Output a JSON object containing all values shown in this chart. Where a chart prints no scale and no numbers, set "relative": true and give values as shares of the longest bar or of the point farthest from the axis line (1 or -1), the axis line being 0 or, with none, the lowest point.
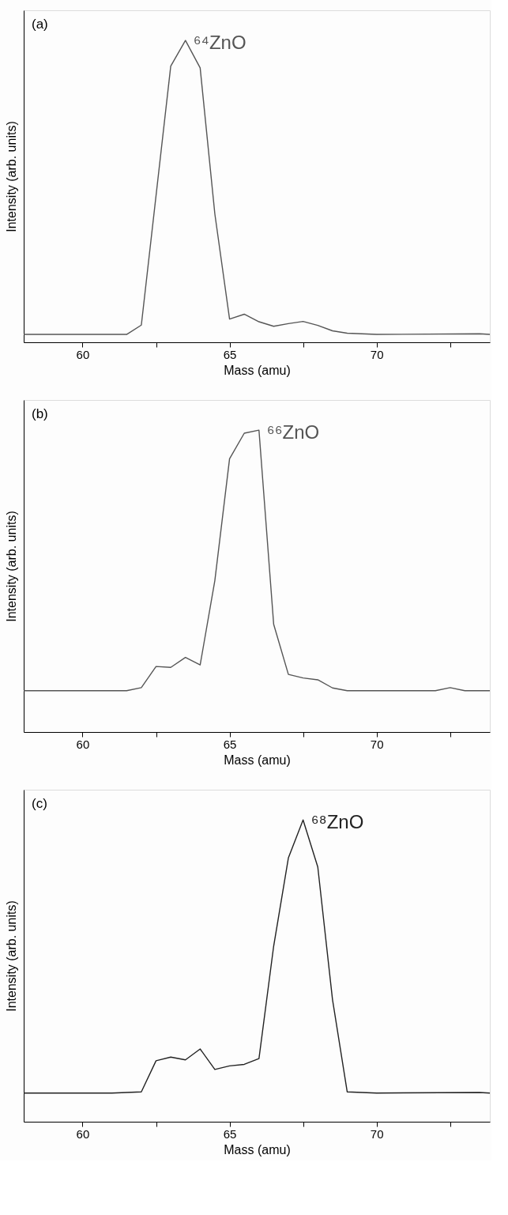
{
  "chart_data": [
    {
      "type": "line",
      "relative": true,
      "xlabel": "Mass (amu)",
      "ylabel": "Intensity (arb. units)",
      "xlim": [
        58,
        73.85
      ],
      "xticks": [
        60,
        {
          "value": 62.5,
          "label": null
        },
        65,
        {
          "value": 67.5,
          "label": null
        },
        70,
        {
          "value": 72.5,
          "label": null
        }
      ],
      "x": [
        58,
        61.5,
        62,
        63,
        63.5,
        64,
        64.5,
        65,
        65.5,
        66,
        66.5,
        67,
        67.5,
        68,
        68.5,
        69,
        70,
        73.5,
        73.85
      ],
      "series": [
        {
          "color": "#555555",
          "values": [
            0.026,
            0.026,
            0.057,
            0.915,
            1,
            0.909,
            0.425,
            0.077,
            0.093,
            0.068,
            0.053,
            0.062,
            0.069,
            0.056,
            0.038,
            0.03,
            0.026,
            0.028,
            0.026
          ]
        }
      ],
      "annotations": [
        "(a)",
        {
          "text": "⁶⁴ZnO",
          "x": 63.5,
          "y": 1
        }
      ]
    },
    {
      "type": "line",
      "relative": true,
      "xlabel": "Mass (amu)",
      "ylabel": "Intensity (arb. units)",
      "xlim": [
        58,
        73.85
      ],
      "xticks": [
        60,
        {
          "value": 62.5,
          "label": null
        },
        65,
        {
          "value": 67.5,
          "label": null
        },
        70,
        {
          "value": 72.5,
          "label": null
        }
      ],
      "x": [
        58,
        61.5,
        62,
        62.5,
        63,
        63.5,
        64,
        64.5,
        65,
        65.5,
        66,
        66.5,
        67,
        67.5,
        68,
        68.5,
        69,
        72,
        72.5,
        73,
        73.85
      ],
      "series": [
        {
          "color": "#555555",
          "values": [
            0.137,
            0.137,
            0.147,
            0.217,
            0.214,
            0.247,
            0.222,
            0.502,
            0.905,
            0.99,
            1,
            0.357,
            0.191,
            0.179,
            0.173,
            0.146,
            0.137,
            0.137,
            0.147,
            0.137,
            0.137
          ]
        }
      ],
      "annotations": [
        "(b)",
        {
          "text": "⁶⁶ZnO",
          "x": 66,
          "y": 1
        }
      ]
    },
    {
      "type": "line",
      "relative": true,
      "xlabel": "Mass (amu)",
      "ylabel": "Intensity (arb. units)",
      "xlim": [
        58,
        73.85
      ],
      "xticks": [
        60,
        {
          "value": 62.5,
          "label": null
        },
        65,
        {
          "value": 67.5,
          "label": null
        },
        70,
        {
          "value": 72.5,
          "label": null
        }
      ],
      "x": [
        58,
        61,
        62,
        62.5,
        63,
        63.5,
        64,
        64.5,
        65,
        65.5,
        66,
        66.5,
        67,
        67.5,
        68,
        68.5,
        69,
        70,
        73.5,
        73.85
      ],
      "series": [
        {
          "color": "#222222",
          "values": [
            0.095,
            0.095,
            0.099,
            0.202,
            0.214,
            0.205,
            0.241,
            0.173,
            0.185,
            0.19,
            0.209,
            0.582,
            0.874,
            1,
            0.844,
            0.405,
            0.099,
            0.095,
            0.097,
            0.095
          ]
        }
      ],
      "annotations": [
        "(c)",
        {
          "text": "⁶⁸ZnO",
          "x": 67.5,
          "y": 1
        }
      ]
    }
  ]
}
